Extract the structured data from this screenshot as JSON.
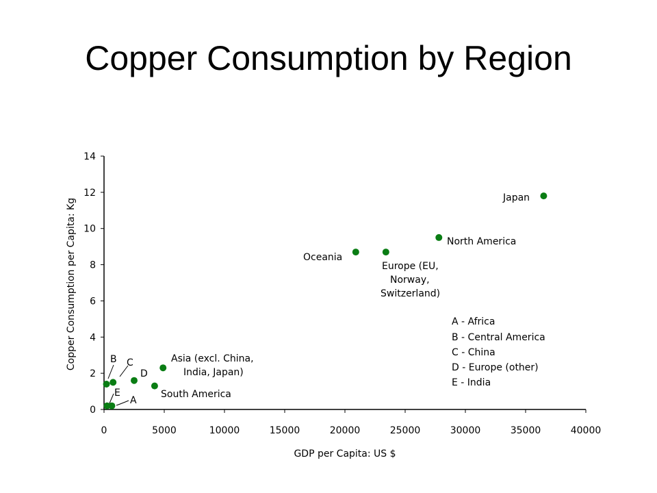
{
  "slide": {
    "title": "Copper Consumption by Region"
  },
  "colors": {
    "marker": "#0a7d14",
    "axis": "#000000"
  },
  "chart_data": {
    "type": "scatter",
    "title": "",
    "xlabel": "GDP per Capita: US $",
    "ylabel": "Copper Consumption per Capita: Kg",
    "xlim": [
      0,
      40000
    ],
    "ylim": [
      0,
      14
    ],
    "x_ticks": [
      0,
      5000,
      10000,
      15000,
      20000,
      25000,
      30000,
      35000,
      40000
    ],
    "y_ticks": [
      0,
      2,
      4,
      6,
      8,
      10,
      12,
      14
    ],
    "grid": false,
    "points": [
      {
        "label": "Japan",
        "x": 36500,
        "y": 11.8
      },
      {
        "label": "North America",
        "x": 27800,
        "y": 9.5
      },
      {
        "label": "Oceania",
        "x": 20900,
        "y": 8.7
      },
      {
        "label": "Europe (EU, Norway, Switzerland)",
        "x": 23400,
        "y": 8.7
      },
      {
        "label": "Asia (excl. China, India, Japan)",
        "x": 4900,
        "y": 2.3
      },
      {
        "label": "South America",
        "x": 4200,
        "y": 1.3
      },
      {
        "label": "D",
        "x": 2500,
        "y": 1.6
      },
      {
        "label": "C",
        "x": 750,
        "y": 1.5
      },
      {
        "label": "B",
        "x": 200,
        "y": 1.4
      },
      {
        "label": "E",
        "x": 250,
        "y": 0.2
      },
      {
        "label": "A",
        "x": 650,
        "y": 0.2
      }
    ],
    "key": [
      "A - Africa",
      "B - Central America",
      "C - China",
      "D - Europe (other)",
      "E - India"
    ]
  }
}
